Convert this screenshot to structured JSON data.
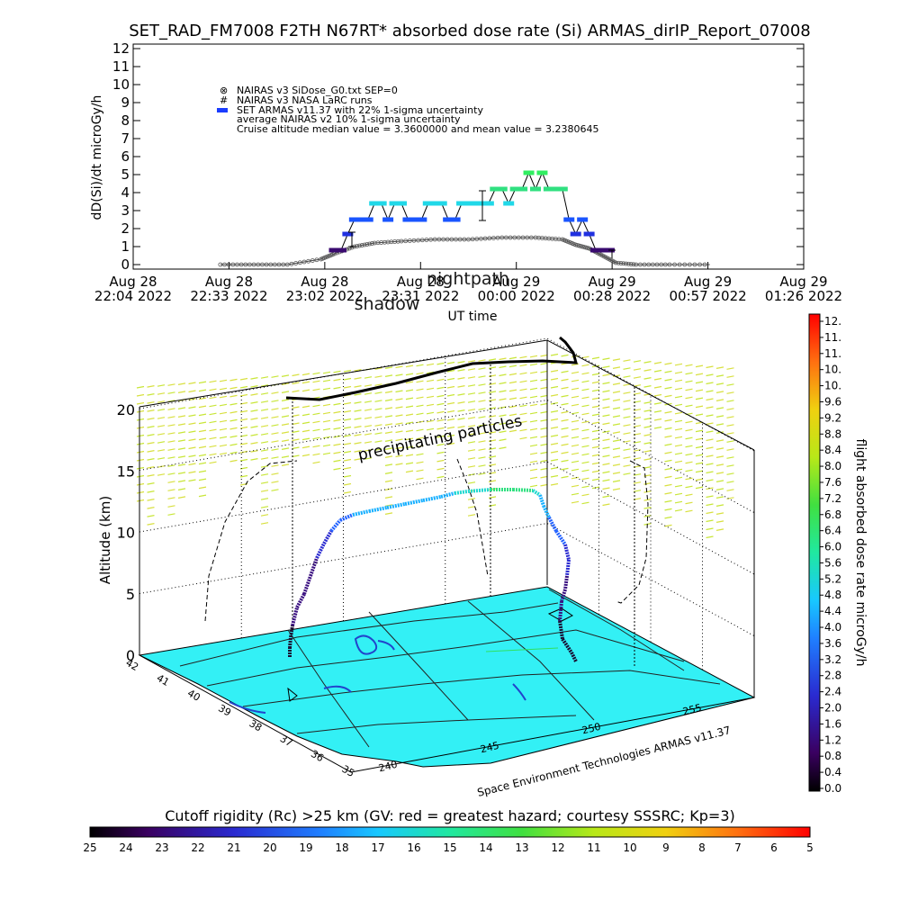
{
  "chart_data": [
    {
      "type": "line",
      "title": "SET_RAD_FM7008  F2TH N67RT* absorbed dose rate (Si) ARMAS_dirIP_Report_07008",
      "xlabel": "UT time",
      "ylabel": "dD(Si)/dt microGy/h",
      "ylim": [
        0,
        12
      ],
      "y_ticks": [
        "0",
        "1",
        "2",
        "3",
        "4",
        "5",
        "6",
        "7",
        "8",
        "9",
        "10",
        "11",
        "12"
      ],
      "x_ticks": [
        {
          "l1": "Aug 28",
          "l2": "22:04 2022"
        },
        {
          "l1": "Aug 28",
          "l2": "22:33 2022"
        },
        {
          "l1": "Aug 28",
          "l2": "23:02 2022"
        },
        {
          "l1": "Aug 28",
          "l2": "23:31 2022"
        },
        {
          "l1": "Aug 29",
          "l2": "00:00 2022"
        },
        {
          "l1": "Aug 29",
          "l2": "00:28 2022"
        },
        {
          "l1": "Aug 29",
          "l2": "00:57 2022"
        },
        {
          "l1": "Aug 29",
          "l2": "01:26 2022"
        }
      ],
      "overlay_text": [
        "nightpath",
        "shadow"
      ],
      "legend": [
        "NAIRAS v3 SiDose_G0.txt SEP=0",
        "NAIRAS v3 NASA LaRC runs",
        "SET ARMAS v11.37 with 22% 1-sigma uncertainty",
        "average NAIRAS v2 10% 1-sigma uncertainty",
        "Cruise altitude median value = 3.3600000 and mean value = 3.2380645"
      ],
      "series": [
        {
          "name": "SET ARMAS v11.37 with 22% 1-sigma uncertainty",
          "x": [
            0.3,
            0.31,
            0.32,
            0.33,
            0.34,
            0.35,
            0.36,
            0.37,
            0.38,
            0.39,
            0.4,
            0.41,
            0.42,
            0.43,
            0.44,
            0.45,
            0.46,
            0.47,
            0.48,
            0.49,
            0.5,
            0.51,
            0.52,
            0.53,
            0.54,
            0.55,
            0.56,
            0.57,
            0.58,
            0.59,
            0.6,
            0.61,
            0.62,
            0.63,
            0.64,
            0.65,
            0.66,
            0.67,
            0.68,
            0.69,
            0.7,
            0.71
          ],
          "values": [
            0.8,
            0.8,
            1.7,
            2.5,
            2.5,
            2.5,
            3.4,
            3.4,
            2.5,
            3.4,
            3.4,
            2.5,
            2.5,
            2.5,
            3.4,
            3.4,
            3.4,
            2.5,
            2.5,
            3.4,
            3.4,
            3.4,
            3.4,
            3.4,
            4.2,
            4.2,
            3.4,
            4.2,
            4.2,
            5.1,
            4.2,
            5.1,
            4.2,
            4.2,
            4.2,
            2.5,
            1.7,
            2.5,
            1.7,
            0.8,
            0.8,
            0.8
          ]
        },
        {
          "name": "NAIRAS v3 SiDose_G0.txt SEP=0",
          "x": [
            0.13,
            0.18,
            0.23,
            0.28,
            0.3,
            0.33,
            0.36,
            0.4,
            0.45,
            0.5,
            0.55,
            0.6,
            0.64,
            0.66,
            0.68,
            0.7,
            0.72,
            0.75,
            0.8,
            0.86
          ],
          "values": [
            0,
            0,
            0,
            0.3,
            0.6,
            1.0,
            1.2,
            1.3,
            1.4,
            1.4,
            1.5,
            1.5,
            1.4,
            1.1,
            0.9,
            0.5,
            0.1,
            0,
            0,
            0
          ]
        }
      ]
    },
    {
      "type": "scatter",
      "title": "",
      "zlabel": "Altitude (km)",
      "z_ticks": [
        "0",
        "5",
        "10",
        "15",
        "20"
      ],
      "lat_ticks": [
        "42",
        "41",
        "40",
        "39",
        "38",
        "37",
        "36",
        "35"
      ],
      "lon_ticks": [
        "240",
        "245",
        "250",
        "255"
      ],
      "annotation": "precipitating particles",
      "credit": "Space Environment Technologies ARMAS v11.37",
      "note": "3D flight path over cutoff rigidity map; track colour = absorbed dose rate"
    }
  ],
  "colorbar_right": {
    "label": "flight absorbed dose rate microGy/h",
    "ticks": [
      "12.",
      "11.",
      "11.",
      "10.",
      "10.",
      "9.6",
      "9.2",
      "8.8",
      "8.4",
      "8.0",
      "7.6",
      "7.2",
      "6.8",
      "6.4",
      "6.0",
      "5.6",
      "5.2",
      "4.8",
      "4.4",
      "4.0",
      "3.6",
      "3.2",
      "2.8",
      "2.4",
      "2.0",
      "1.6",
      "1.2",
      "0.8",
      "0.4",
      "0.0"
    ]
  },
  "colorbar_bottom": {
    "label": "Cutoff rigidity (Rc) >25 km (GV: red = greatest hazard; courtesy SSSRC; Kp=3)",
    "ticks": [
      "25",
      "24",
      "23",
      "22",
      "21",
      "20",
      "19",
      "18",
      "17",
      "16",
      "15",
      "14",
      "13",
      "12",
      "11",
      "10",
      "9",
      "8",
      "7",
      "6",
      "5"
    ]
  },
  "colors": {
    "map_fill": "#33f0f5",
    "aurora": "#c8e638",
    "track_low": "#2a0a60",
    "track_mid": "#2060ff",
    "track_high": "#20e070",
    "model": "#333333"
  }
}
